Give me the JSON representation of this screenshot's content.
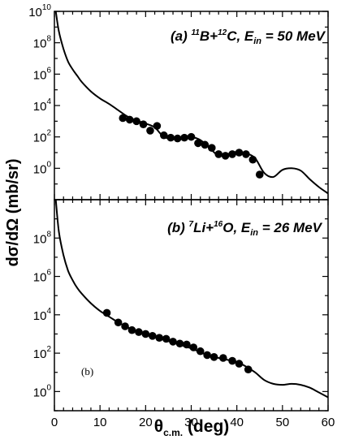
{
  "chart_data": [
    {
      "type": "line",
      "panel": "(a)",
      "title": {
        "prefix": "(a) ",
        "proj_mass": "11",
        "proj": "B+",
        "targ_mass": "12",
        "targ": "C, E",
        "sub": "in",
        "energy": " = 50 MeV"
      },
      "x_scale": "linear",
      "y_scale": "log",
      "xlim": [
        0,
        60
      ],
      "ylim_log10": [
        -2,
        10
      ],
      "y_ticks": [
        {
          "base": "10",
          "exp": "0"
        },
        {
          "base": "10",
          "exp": "2"
        },
        {
          "base": "10",
          "exp": "4"
        },
        {
          "base": "10",
          "exp": "6"
        },
        {
          "base": "10",
          "exp": "8"
        },
        {
          "base": "10",
          "exp": "10"
        }
      ],
      "y_tick_values": [
        0,
        2,
        4,
        6,
        8,
        10
      ],
      "series": [
        {
          "style": "line",
          "x": [
            0.3,
            1,
            2,
            3,
            4,
            5,
            6,
            8,
            10,
            12,
            14,
            16,
            18,
            20,
            22,
            24,
            26,
            28,
            30,
            32,
            34,
            36,
            38,
            40,
            42,
            44,
            46,
            48,
            50,
            52,
            54,
            56,
            58,
            60
          ],
          "log10_y": [
            10.0,
            8.7,
            7.6,
            6.8,
            6.3,
            5.9,
            5.5,
            4.9,
            4.45,
            4.1,
            3.7,
            3.3,
            3.05,
            2.85,
            2.6,
            2.0,
            1.9,
            1.95,
            2.0,
            1.8,
            1.3,
            0.8,
            0.9,
            1.05,
            0.95,
            0.65,
            -0.3,
            -0.55,
            -0.1,
            0.0,
            -0.15,
            -0.7,
            -1.2,
            -1.6
          ]
        },
        {
          "style": "points",
          "x": [
            15,
            16.5,
            18,
            19.5,
            21,
            22.5,
            24,
            25.5,
            27,
            28.5,
            30,
            31.5,
            33,
            34.5,
            36,
            37.5,
            39,
            40.5,
            42,
            43.5,
            45
          ],
          "log10_y": [
            3.2,
            3.1,
            3.0,
            2.8,
            2.4,
            2.7,
            2.1,
            1.95,
            1.9,
            1.95,
            2.0,
            1.6,
            1.5,
            1.3,
            0.9,
            0.8,
            0.9,
            1.0,
            0.9,
            0.55,
            -0.4
          ]
        }
      ]
    },
    {
      "type": "line",
      "panel": "(b)",
      "title": {
        "prefix": "(b) ",
        "proj_mass": "7",
        "proj": "Li+",
        "targ_mass": "16",
        "targ": "O, E",
        "sub": "in",
        "energy": " = 26 MeV"
      },
      "panel_letter": "(b)",
      "x_scale": "linear",
      "y_scale": "log",
      "xlim": [
        0,
        60
      ],
      "ylim_log10": [
        -1,
        10
      ],
      "x_ticks": [
        "0",
        "10",
        "20",
        "30",
        "40",
        "50",
        "60"
      ],
      "x_tick_values": [
        0,
        10,
        20,
        30,
        40,
        50,
        60
      ],
      "y_ticks": [
        {
          "base": "10",
          "exp": "0"
        },
        {
          "base": "10",
          "exp": "2"
        },
        {
          "base": "10",
          "exp": "4"
        },
        {
          "base": "10",
          "exp": "6"
        },
        {
          "base": "10",
          "exp": "8"
        }
      ],
      "y_tick_values": [
        0,
        2,
        4,
        6,
        8
      ],
      "series": [
        {
          "style": "line",
          "x": [
            0.3,
            1,
            2,
            3,
            4,
            5,
            6,
            8,
            10,
            12,
            14,
            16,
            18,
            20,
            22,
            24,
            26,
            28,
            30,
            32,
            34,
            36,
            38,
            40,
            42,
            44,
            46,
            48,
            50,
            52,
            54,
            56,
            58,
            60
          ],
          "log10_y": [
            10.0,
            8.3,
            7.1,
            6.3,
            5.8,
            5.4,
            5.1,
            4.6,
            4.2,
            3.9,
            3.6,
            3.35,
            3.15,
            3.0,
            2.85,
            2.7,
            2.55,
            2.4,
            2.25,
            2.05,
            1.85,
            1.75,
            1.65,
            1.55,
            1.3,
            1.0,
            0.6,
            0.4,
            0.35,
            0.4,
            0.35,
            0.2,
            -0.05,
            -0.3
          ]
        },
        {
          "style": "points",
          "x": [
            11.5,
            14,
            15.5,
            17,
            18.5,
            20,
            21.5,
            23,
            24.5,
            26,
            27.5,
            29,
            30.5,
            32,
            33.5,
            35,
            37,
            39,
            40.5,
            42.5
          ],
          "log10_y": [
            4.1,
            3.6,
            3.4,
            3.2,
            3.1,
            3.0,
            2.9,
            2.8,
            2.75,
            2.6,
            2.5,
            2.45,
            2.3,
            2.1,
            1.9,
            1.8,
            1.75,
            1.6,
            1.45,
            1.15
          ]
        }
      ]
    }
  ],
  "shared": {
    "ylabel": "dσ/dΩ  (mb/sr)",
    "xlabel_main": "θ",
    "xlabel_sub": "c.m.",
    "xlabel_rest": " (deg)"
  }
}
